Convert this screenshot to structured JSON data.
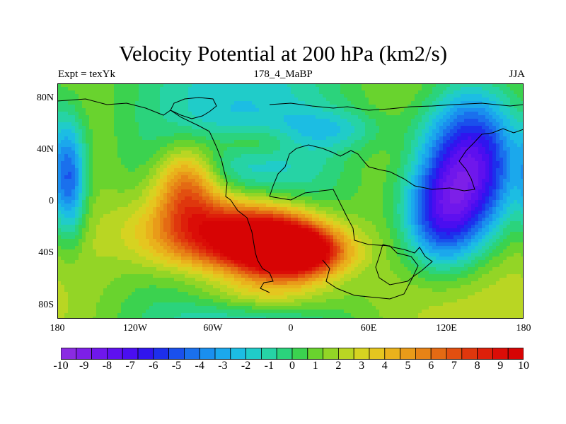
{
  "title": "Velocity Potential at 200 hPa (km2/s)",
  "subtitle_left": "Expt = texYk",
  "subtitle_center": "178_4_MaBP",
  "subtitle_right": "JJA",
  "lat_labels": [
    "80N",
    "40N",
    "0",
    "40S",
    "80S"
  ],
  "lon_labels": [
    "180",
    "120W",
    "60W",
    "0",
    "60E",
    "120E",
    "180"
  ],
  "colorbar_labels": [
    "-10",
    "-9",
    "-8",
    "-7",
    "-6",
    "-5",
    "-4",
    "-3",
    "-2",
    "-1",
    "0",
    "1",
    "2",
    "3",
    "4",
    "5",
    "6",
    "7",
    "8",
    "9",
    "10"
  ],
  "colorbar_colors": [
    "#8a2be2",
    "#7d1fe8",
    "#6f17ec",
    "#5e10ef",
    "#4a0ef0",
    "#3015ee",
    "#1d2fec",
    "#1a50ec",
    "#1a70ed",
    "#1a8fee",
    "#1ba8ec",
    "#1cbde3",
    "#20ccc9",
    "#26d3a5",
    "#2bd37c",
    "#3bd24f",
    "#69d32e",
    "#93d526",
    "#b9d623",
    "#d6d321",
    "#e5c61f",
    "#e9b21c",
    "#e99b19",
    "#e78316",
    "#e46a13",
    "#e24f10",
    "#df370d",
    "#dd200a",
    "#db0d07",
    "#d70404"
  ],
  "chart_data": {
    "type": "heatmap",
    "title": "Velocity Potential at 200 hPa (km2/s)",
    "variable": "Velocity Potential",
    "level": "200 hPa",
    "units": "km2/s",
    "experiment": "texYk",
    "case": "178_4_MaBP",
    "season": "JJA",
    "x_range": [
      -180,
      180
    ],
    "y_range": [
      -90,
      90
    ],
    "color_range": [
      -10,
      10
    ],
    "anomalies": [
      {
        "lon": -55,
        "lat": -25,
        "value": 10.5,
        "rx": 60,
        "ry": 32
      },
      {
        "lon": -10,
        "lat": -35,
        "value": 9.5,
        "rx": 40,
        "ry": 25
      },
      {
        "lon": 10,
        "lat": -40,
        "value": 7,
        "rx": 35,
        "ry": 18
      },
      {
        "lon": -80,
        "lat": 15,
        "value": 6,
        "rx": 25,
        "ry": 30
      },
      {
        "lon": -20,
        "lat": -72,
        "value": 3,
        "rx": 55,
        "ry": 15
      },
      {
        "lon": 140,
        "lat": 28,
        "value": -11,
        "rx": 40,
        "ry": 60
      },
      {
        "lon": 115,
        "lat": -15,
        "value": -6,
        "rx": 30,
        "ry": 40
      },
      {
        "lon": -170,
        "lat": 15,
        "value": -5,
        "rx": 12,
        "ry": 45
      },
      {
        "lon": -30,
        "lat": 45,
        "value": 2.5,
        "rx": 35,
        "ry": 14
      },
      {
        "lon": 35,
        "lat": 55,
        "value": -2,
        "rx": 40,
        "ry": 15
      }
    ]
  }
}
